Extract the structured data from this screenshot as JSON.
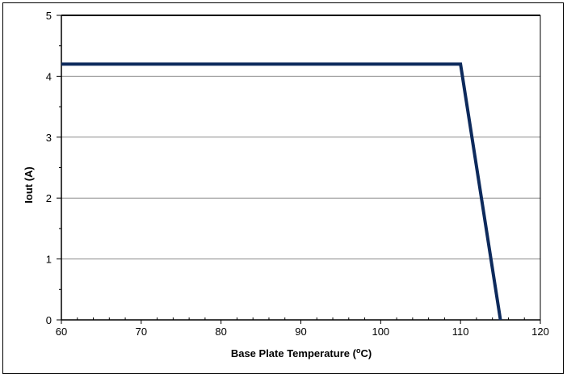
{
  "chart_data": {
    "type": "line",
    "title": "",
    "xlabel": "Base Plate Temperature (",
    "xlabel_superscript": "o",
    "xlabel_suffix": "C)",
    "ylabel": "Iout (A)",
    "xlim": [
      60,
      120
    ],
    "ylim": [
      0,
      5
    ],
    "x_ticks": [
      60,
      70,
      80,
      90,
      100,
      110,
      120
    ],
    "y_ticks": [
      0,
      1,
      2,
      3,
      4,
      5
    ],
    "x_minor_step": 2,
    "y_minor_step": 0.5,
    "grid": "horizontal",
    "legend": "none",
    "series": [
      {
        "x": [
          60,
          110,
          115
        ],
        "y": [
          4.2,
          4.2,
          0
        ],
        "color": "#0d2a5c"
      }
    ]
  },
  "colors": {
    "gridline": "#8c8c8c",
    "axis": "#000000",
    "line": "#0d2a5c"
  }
}
